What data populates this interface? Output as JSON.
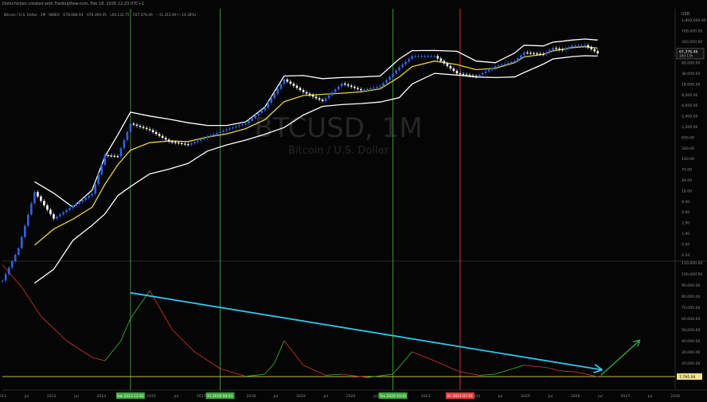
{
  "header": {
    "caption": "Dorkchicken created with TradingView.com, Feb 18, 2026 12:23 UTC+1"
  },
  "legend": {
    "symbol": "Bitcoin / U.S. Dollar · 1M · INDEX",
    "open": "O78,688.93",
    "high": "H79,369.05",
    "low": "L60,132.75",
    "close": "C67,378.46",
    "change": "−11,312.69 (−14.38%)"
  },
  "watermark": {
    "ticker": "BTCUSD, 1M",
    "name": "Bitcoin / U.S. Dollar"
  },
  "price_axis": {
    "currency": "USD",
    "ticks": [
      "1,000,000.00",
      "700,000.00",
      "340,000.00",
      "160,000.00",
      "80,000.00",
      "38,000.00",
      "18,000.00",
      "8,000.00",
      "4,000.00",
      "2,400.00",
      "1,200.00",
      "600.00",
      "300.00",
      "140.00",
      "70.00",
      "34.00",
      "16.00",
      "8.00",
      "4.00",
      "2.00",
      "1.00",
      "0.50",
      "0.24"
    ],
    "last_price": "67,378.46",
    "countdown": "10d 13h"
  },
  "osc_axis": {
    "ticks": [
      "110,000.00",
      "100,000.00",
      "90,000.00",
      "80,000.00",
      "70,000.00",
      "60,000.00",
      "50,000.00",
      "40,000.00",
      "30,000.00",
      "20,000.00",
      "10,000.00"
    ],
    "last_value": "7,795.00"
  },
  "time_axis": {
    "labels": [
      "2011",
      "Jul",
      "2012",
      "Jul",
      "2014",
      "Jul",
      "2015",
      "Jul",
      "2017",
      "Jul",
      "2018",
      "Jul",
      "2019",
      "Jul",
      "2020",
      "Jul",
      "2022",
      "2023",
      "Jul",
      "2024",
      "Jul",
      "2025",
      "Jul",
      "2026",
      "Jul",
      "2027",
      "Jul",
      "2028"
    ],
    "highlights": [
      "Sat 2013-12-01",
      "Fri 2016-04-01",
      "Thu 2020-10-01",
      "Fri 2022-07-01"
    ]
  },
  "colors": {
    "background": "#050505",
    "up_candle": "#2f64e0",
    "down_candle": "#ffffff",
    "bollinger_band": "#ffffff",
    "basis": "#e8d23a",
    "oscillator_up": "#33c23a",
    "oscillator_down": "#d23a2a",
    "trendline": "#35c4e6",
    "projection_arrow": "#2ea84b",
    "green_marker": "#3aa83a",
    "red_marker": "#e23a3a"
  },
  "chart_data": [
    {
      "type": "candlestick",
      "title": "BTCUSD, 1M",
      "subtitle": "Bitcoin / U.S. Dollar",
      "y_scale": "log",
      "ylim": [
        0.24,
        1000000
      ],
      "indicators": [
        "Bollinger Bands",
        "moving-average basis"
      ],
      "vertical_markers": [
        {
          "date": "2013-12-01",
          "color": "green"
        },
        {
          "date": "2016-04-01",
          "color": "green"
        },
        {
          "date": "2020-10-01",
          "color": "green"
        },
        {
          "date": "2022-07-01",
          "color": "red"
        }
      ],
      "x": [
        "2010-08",
        "2011-01",
        "2011-06",
        "2011-12",
        "2012-06",
        "2012-12",
        "2013-04",
        "2013-08",
        "2013-12",
        "2014-06",
        "2014-12",
        "2015-06",
        "2015-12",
        "2016-06",
        "2016-12",
        "2017-06",
        "2017-12",
        "2018-06",
        "2018-12",
        "2019-06",
        "2019-12",
        "2020-06",
        "2020-12",
        "2021-04",
        "2021-11",
        "2022-06",
        "2022-12",
        "2023-06",
        "2023-12",
        "2024-03",
        "2024-09",
        "2024-12",
        "2025-03",
        "2025-06",
        "2025-10",
        "2026-02"
      ],
      "close": [
        0.07,
        0.5,
        15,
        3,
        6.5,
        13.5,
        140,
        130,
        950,
        640,
        320,
        265,
        430,
        670,
        960,
        2500,
        13800,
        6400,
        3700,
        10800,
        7200,
        9100,
        29000,
        57000,
        57000,
        19900,
        16500,
        30400,
        42000,
        71000,
        63000,
        93000,
        82000,
        107000,
        110000,
        67378
      ],
      "upper_band": [
        null,
        null,
        28,
        14,
        6,
        17,
        130,
        480,
        1900,
        1500,
        1250,
        1000,
        850,
        850,
        1050,
        2600,
        17000,
        17500,
        14500,
        15500,
        16000,
        17000,
        48000,
        79000,
        80000,
        76000,
        42000,
        38000,
        68000,
        110000,
        105000,
        132000,
        140000,
        150000,
        160000,
        150000
      ],
      "basis": [
        null,
        null,
        0.6,
        1.6,
        2.9,
        6,
        24,
        78,
        190,
        300,
        330,
        320,
        420,
        510,
        700,
        1200,
        3600,
        5200,
        5600,
        6000,
        6500,
        7800,
        16000,
        30000,
        42000,
        34000,
        25000,
        27000,
        38000,
        54000,
        63000,
        78000,
        85000,
        95000,
        100000,
        92000
      ],
      "lower_band": [
        null,
        null,
        0.06,
        0.14,
        0.8,
        2,
        4,
        12,
        21,
        45,
        60,
        85,
        180,
        260,
        350,
        500,
        750,
        1600,
        2700,
        3000,
        3200,
        3500,
        4600,
        10500,
        20000,
        18000,
        16000,
        15500,
        16000,
        21000,
        35000,
        48000,
        51000,
        55000,
        58000,
        57000
      ]
    },
    {
      "type": "line",
      "title": "",
      "ylim": [
        0,
        110000
      ],
      "x": [
        "2010-08",
        "2011-02",
        "2011-08",
        "2012-04",
        "2012-12",
        "2013-04",
        "2013-09",
        "2013-12",
        "2014-06",
        "2015-01",
        "2015-08",
        "2016-04",
        "2016-12",
        "2017-06",
        "2017-09",
        "2017-12",
        "2018-06",
        "2019-01",
        "2019-06",
        "2020-02",
        "2020-10",
        "2021-04",
        "2021-11",
        "2022-07",
        "2023-01",
        "2023-06",
        "2024-03",
        "2024-10",
        "2025-02",
        "2025-07",
        "2026-02"
      ],
      "values": [
        108000,
        88000,
        62000,
        40000,
        25000,
        22000,
        40000,
        60000,
        85000,
        50000,
        30000,
        15000,
        8000,
        10000,
        20000,
        40000,
        18000,
        9000,
        10000,
        7000,
        10000,
        30000,
        22000,
        12000,
        9000,
        10000,
        18000,
        16000,
        13000,
        12000,
        7795
      ],
      "up_color_segments": "green when rising, red when falling",
      "current_value": 7795,
      "annotations": [
        {
          "kind": "trendline",
          "from": {
            "x": "2013-12",
            "y": 83000
          },
          "to": {
            "x": "2026-03",
            "y": 14000
          }
        },
        {
          "kind": "arrow",
          "from": {
            "x": "2026-03",
            "y": 9000
          },
          "to": {
            "x": "2027-03",
            "y": 40000
          }
        }
      ]
    }
  ]
}
